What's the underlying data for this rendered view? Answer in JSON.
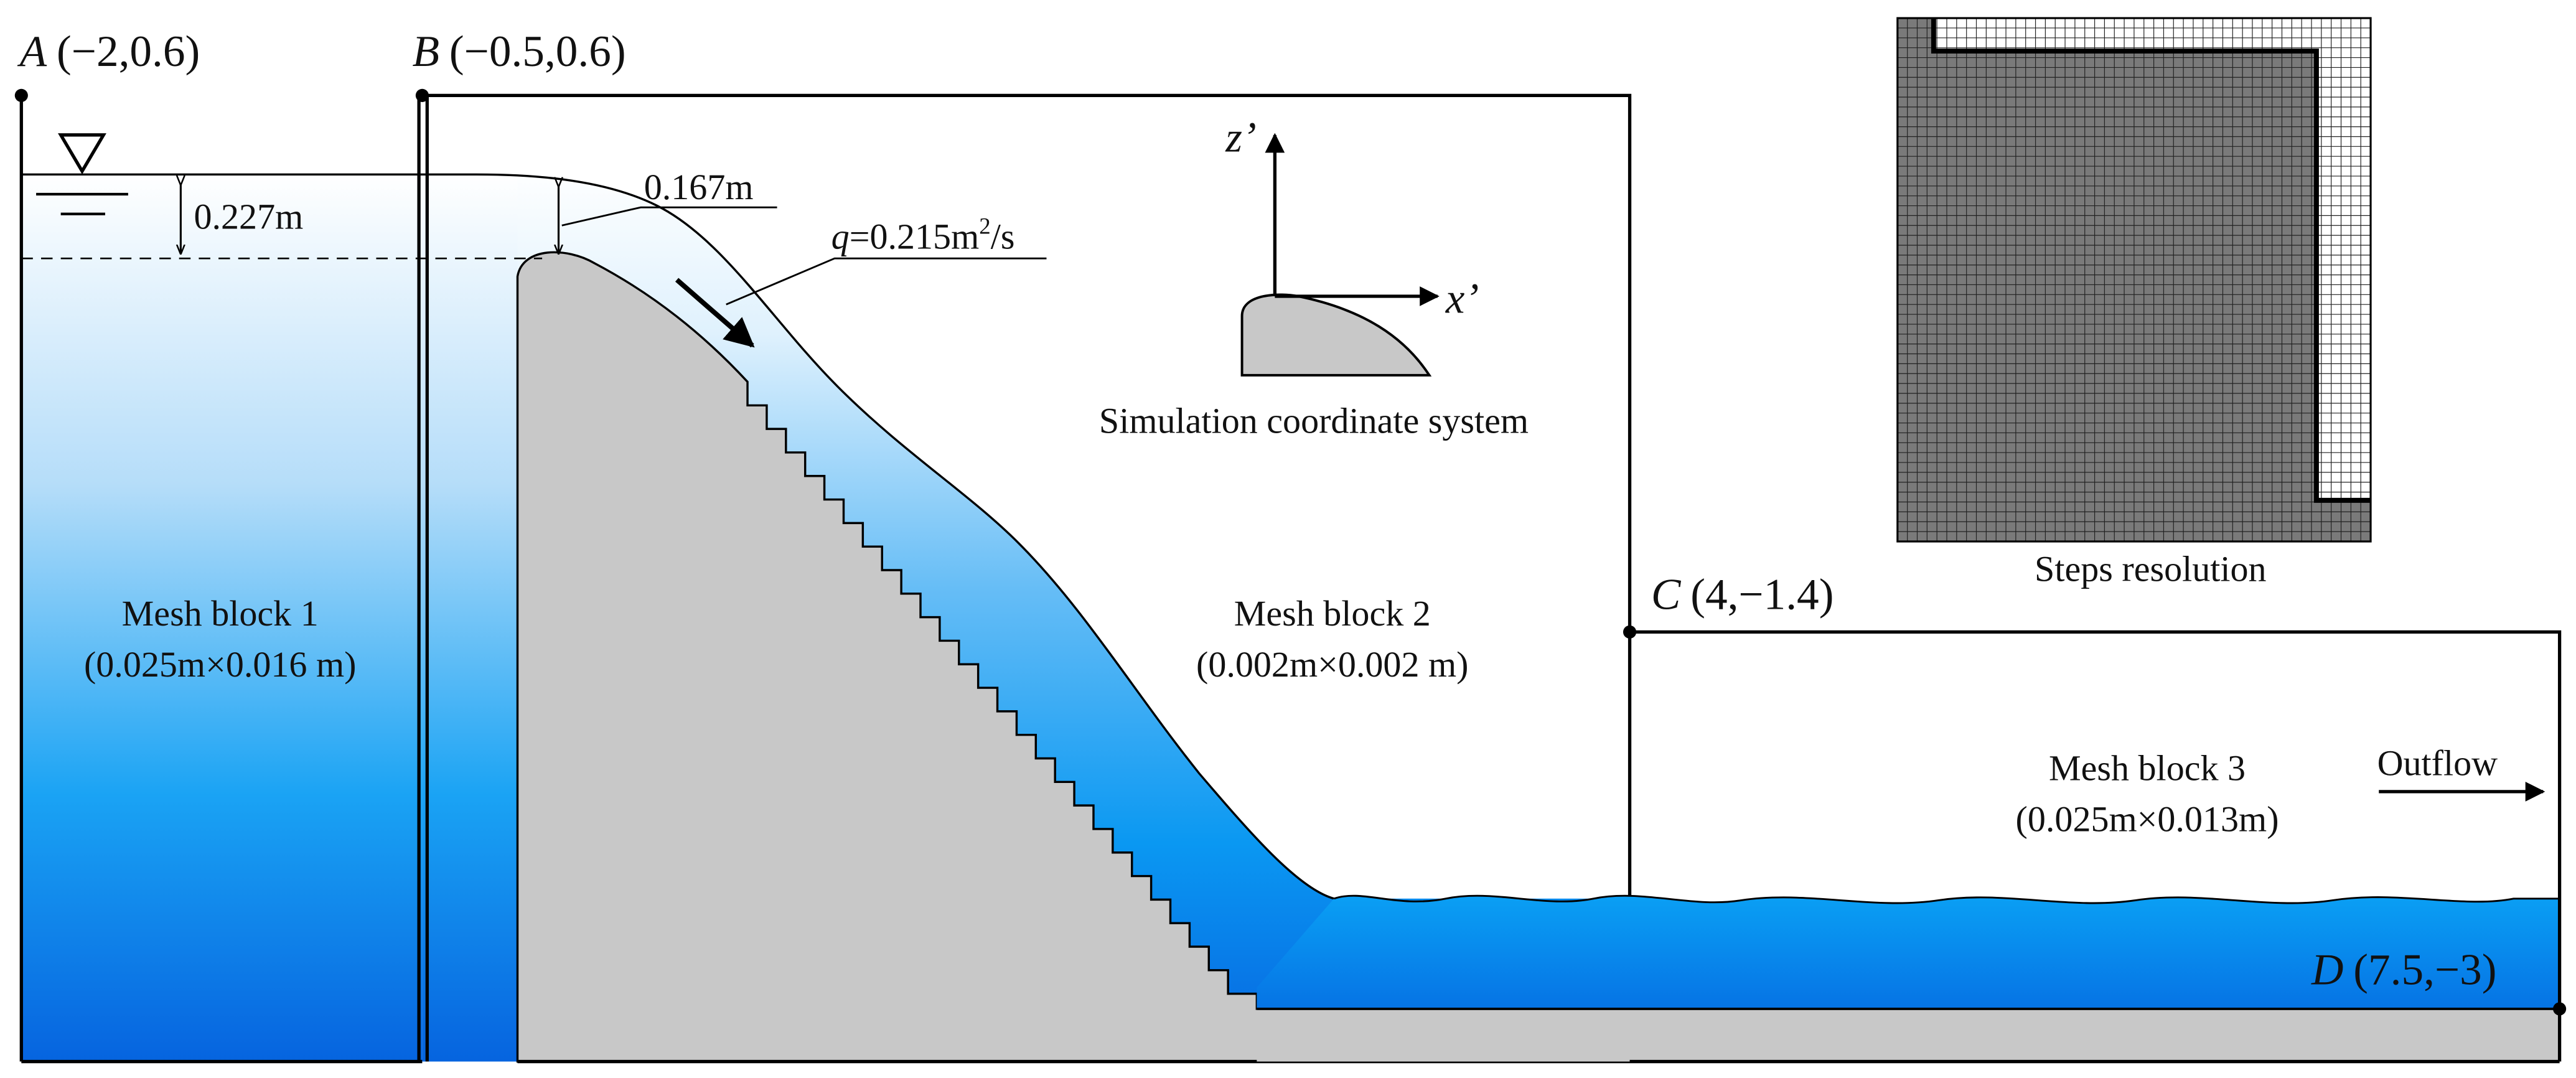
{
  "points": {
    "A": {
      "letter": "A",
      "coords": "(−2,0.6)"
    },
    "B": {
      "letter": "B",
      "coords": "(−0.5,0.6)"
    },
    "C": {
      "letter": "C",
      "coords": "(4,−1.4)"
    },
    "D": {
      "letter": "D",
      "coords": "(7.5,−3)"
    }
  },
  "dimensions": {
    "upstream_depth": "0.227m",
    "crest_depth": "0.167m",
    "discharge_symbol": "q",
    "discharge_value": "=0.215m",
    "discharge_exp": "2",
    "discharge_unit": "/s"
  },
  "mesh_blocks": [
    {
      "name": "Mesh block 1",
      "size": "(0.025m×0.016 m)"
    },
    {
      "name": "Mesh block 2",
      "size": "(0.002m×0.002 m)"
    },
    {
      "name": "Mesh block 3",
      "size": "(0.025m×0.013m)"
    }
  ],
  "coordinate_system": {
    "x_axis": "x’",
    "z_axis": "z’",
    "caption": "Simulation coordinate system"
  },
  "inset": {
    "caption": "Steps resolution"
  },
  "outflow": "Outflow",
  "colors": {
    "water_top": "#ffffff",
    "water_mid": "#7cc8f7",
    "water_deep": "#0a8ef0",
    "water_bottom": "#0667e0",
    "structure": "#c8c8c8",
    "inset_dark": "#7a7a7a",
    "line": "#000000"
  }
}
